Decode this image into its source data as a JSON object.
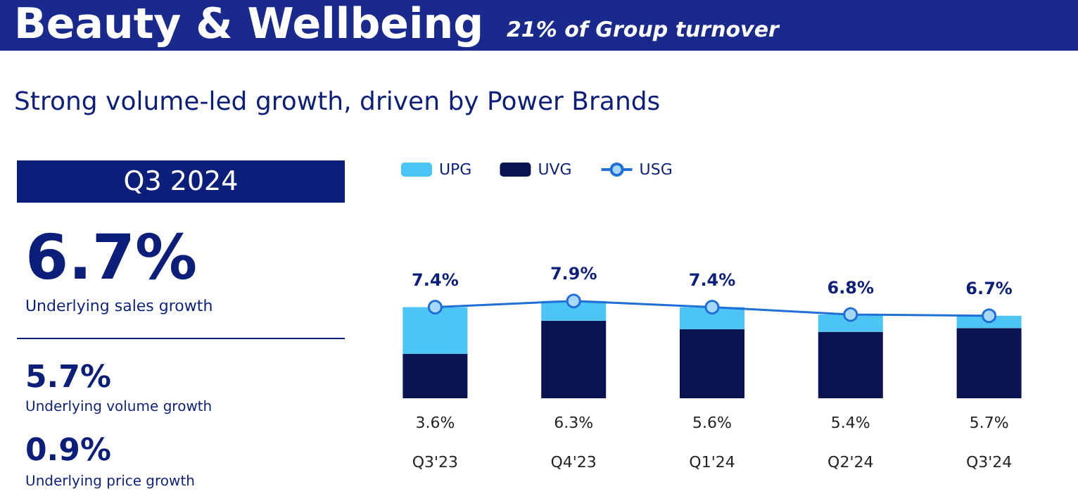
{
  "chart_data": {
    "type": "bar",
    "title": "Beauty & Wellbeing",
    "subtitle": "21% of Group turnover",
    "annotations": [
      "Strong volume-led growth, driven by Power Brands",
      "Q3 2024",
      "6.7%",
      "Underlying sales growth",
      "5.7%",
      "Underlying volume growth",
      "0.9%",
      "Underlying price growth"
    ],
    "categories": [
      "Q3'23",
      "Q4'23",
      "Q1'24",
      "Q2'24",
      "Q3'24"
    ],
    "stacked": true,
    "series": [
      {
        "name": "UVG",
        "color": "#0b1452",
        "values": [
          3.6,
          6.3,
          5.6,
          5.4,
          5.7
        ],
        "value_labels": [
          "3.6%",
          "6.3%",
          "5.6%",
          "5.4%",
          "5.7%"
        ]
      },
      {
        "name": "UPG",
        "color": "#4cc4f4",
        "values": [
          3.8,
          1.6,
          1.8,
          1.4,
          1.0
        ]
      },
      {
        "name": "USG",
        "type": "line",
        "color": "#1f6fd6",
        "values": [
          7.4,
          7.9,
          7.4,
          6.8,
          6.7
        ],
        "value_labels": [
          "7.4%",
          "7.9%",
          "7.4%",
          "6.8%",
          "6.7%"
        ]
      }
    ],
    "legend": "top left",
    "marker": "circle",
    "line_style": "solid"
  }
}
